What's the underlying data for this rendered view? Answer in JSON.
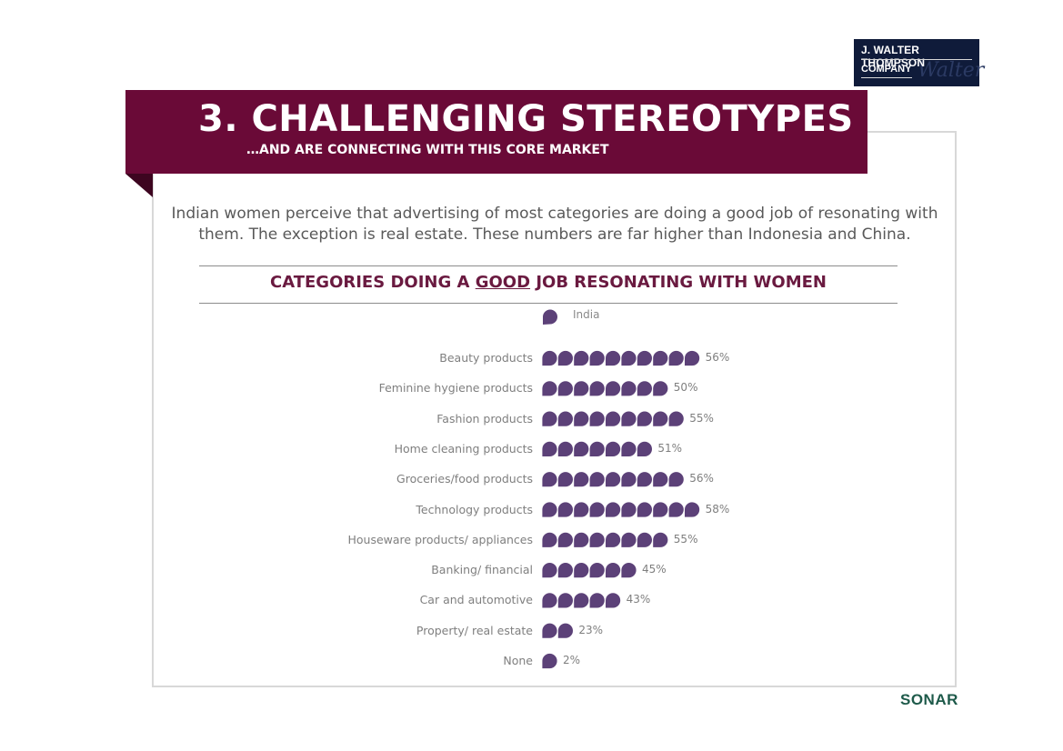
{
  "brand": {
    "logo_line1": "J. WALTER THOMPSON",
    "logo_line2": "COMPANY",
    "logo_script": "Walter",
    "footer_logo": "SONAR"
  },
  "header": {
    "title": "3. CHALLENGING STEREOTYPES",
    "subtitle": "…AND ARE CONNECTING WITH THIS CORE MARKET"
  },
  "intro_text": "Indian women perceive that advertising of most categories are doing a good job of resonating with them. The exception is real estate. These numbers are far higher than Indonesia and China.",
  "colors": {
    "banner": "#6a0a37",
    "mark": "#5c4178",
    "title_text": "#6a1a40"
  },
  "chart_data": {
    "type": "bar",
    "title_parts": [
      "CATEGORIES DOING A ",
      "GOOD",
      " JOB RESONATING WITH WOMEN"
    ],
    "legend": [
      "India"
    ],
    "mark_icon": "speech-bubble-icon",
    "categories": [
      "Beauty products",
      "Feminine hygiene products",
      "Fashion products",
      "Home cleaning products",
      "Groceries/food products",
      "Technology products",
      "Houseware products/ appliances",
      "Banking/ financial",
      "Car and automotive",
      "Property/ real estate",
      "None"
    ],
    "series": [
      {
        "name": "India",
        "values": [
          56,
          50,
          55,
          51,
          56,
          58,
          55,
          45,
          43,
          23,
          2
        ],
        "labels": [
          "56%",
          "50%",
          "55%",
          "51%",
          "56%",
          "58%",
          "55%",
          "45%",
          "43%",
          "23%",
          "2%"
        ],
        "icon_counts": [
          10,
          8,
          9,
          7,
          9,
          10,
          8,
          6,
          5,
          2,
          1
        ]
      }
    ]
  }
}
